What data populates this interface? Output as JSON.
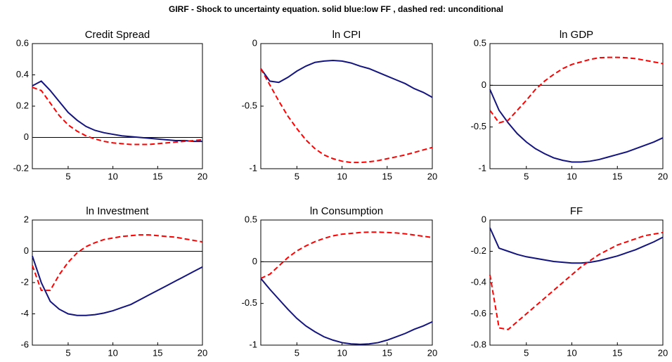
{
  "title": "GIRF - Shock to uncertainty equation. solid blue:low FF , dashed red: unconditional",
  "chart_data": [
    {
      "type": "line",
      "title": "Credit Spread",
      "x": [
        1,
        2,
        3,
        4,
        5,
        6,
        7,
        8,
        9,
        10,
        11,
        12,
        13,
        14,
        15,
        16,
        17,
        18,
        19,
        20
      ],
      "xlim": [
        1,
        20
      ],
      "xticks": [
        5,
        10,
        15,
        20
      ],
      "ylim": [
        -0.2,
        0.6
      ],
      "yticks": [
        -0.2,
        0,
        0.2,
        0.4,
        0.6
      ],
      "series": [
        {
          "color": "#14147f",
          "linestyle": "solid",
          "values": [
            0.33,
            0.36,
            0.3,
            0.23,
            0.16,
            0.11,
            0.07,
            0.045,
            0.03,
            0.02,
            0.01,
            0.005,
            0,
            -0.005,
            -0.01,
            -0.015,
            -0.02,
            -0.02,
            -0.025,
            -0.025
          ]
        },
        {
          "color": "#ff0000",
          "linestyle": "dashed",
          "values": [
            0.32,
            0.3,
            0.22,
            0.14,
            0.08,
            0.04,
            0.01,
            -0.01,
            -0.025,
            -0.035,
            -0.04,
            -0.045,
            -0.045,
            -0.045,
            -0.04,
            -0.035,
            -0.03,
            -0.025,
            -0.02,
            -0.015
          ]
        }
      ]
    },
    {
      "type": "line",
      "title": "ln CPI",
      "x": [
        1,
        2,
        3,
        4,
        5,
        6,
        7,
        8,
        9,
        10,
        11,
        12,
        13,
        14,
        15,
        16,
        17,
        18,
        19,
        20
      ],
      "xlim": [
        1,
        20
      ],
      "xticks": [
        5,
        10,
        15,
        20
      ],
      "ylim": [
        -1,
        0
      ],
      "yticks": [
        -1,
        -0.5,
        0
      ],
      "series": [
        {
          "color": "#14147f",
          "linestyle": "solid",
          "values": [
            -0.2,
            -0.3,
            -0.31,
            -0.27,
            -0.22,
            -0.18,
            -0.15,
            -0.14,
            -0.135,
            -0.14,
            -0.155,
            -0.18,
            -0.2,
            -0.23,
            -0.26,
            -0.29,
            -0.32,
            -0.36,
            -0.39,
            -0.43
          ]
        },
        {
          "color": "#ff0000",
          "linestyle": "dashed",
          "values": [
            -0.2,
            -0.33,
            -0.46,
            -0.58,
            -0.68,
            -0.77,
            -0.84,
            -0.89,
            -0.92,
            -0.94,
            -0.95,
            -0.95,
            -0.945,
            -0.935,
            -0.92,
            -0.905,
            -0.89,
            -0.87,
            -0.85,
            -0.83
          ]
        }
      ]
    },
    {
      "type": "line",
      "title": "ln GDP",
      "x": [
        1,
        2,
        3,
        4,
        5,
        6,
        7,
        8,
        9,
        10,
        11,
        12,
        13,
        14,
        15,
        16,
        17,
        18,
        19,
        20
      ],
      "xlim": [
        1,
        20
      ],
      "xticks": [
        5,
        10,
        15,
        20
      ],
      "ylim": [
        -1,
        0.5
      ],
      "yticks": [
        -1,
        -0.5,
        0,
        0.5
      ],
      "series": [
        {
          "color": "#14147f",
          "linestyle": "solid",
          "values": [
            -0.05,
            -0.3,
            -0.45,
            -0.58,
            -0.68,
            -0.76,
            -0.82,
            -0.87,
            -0.9,
            -0.92,
            -0.92,
            -0.91,
            -0.89,
            -0.86,
            -0.83,
            -0.8,
            -0.76,
            -0.72,
            -0.68,
            -0.63
          ]
        },
        {
          "color": "#ff0000",
          "linestyle": "dashed",
          "values": [
            -0.3,
            -0.45,
            -0.42,
            -0.3,
            -0.18,
            -0.05,
            0.05,
            0.13,
            0.2,
            0.25,
            0.28,
            0.31,
            0.33,
            0.335,
            0.335,
            0.33,
            0.32,
            0.3,
            0.28,
            0.26
          ]
        }
      ]
    },
    {
      "type": "line",
      "title": "ln Investment",
      "x": [
        1,
        2,
        3,
        4,
        5,
        6,
        7,
        8,
        9,
        10,
        11,
        12,
        13,
        14,
        15,
        16,
        17,
        18,
        19,
        20
      ],
      "xlim": [
        1,
        20
      ],
      "xticks": [
        5,
        10,
        15,
        20
      ],
      "ylim": [
        -6,
        2
      ],
      "yticks": [
        -6,
        -4,
        -2,
        0,
        2
      ],
      "series": [
        {
          "color": "#14147f",
          "linestyle": "solid",
          "values": [
            -0.3,
            -2,
            -3.2,
            -3.7,
            -4,
            -4.1,
            -4.1,
            -4.05,
            -3.95,
            -3.8,
            -3.6,
            -3.4,
            -3.1,
            -2.8,
            -2.5,
            -2.2,
            -1.9,
            -1.6,
            -1.3,
            -1.0
          ]
        },
        {
          "color": "#ff0000",
          "linestyle": "dashed",
          "values": [
            -0.9,
            -2.5,
            -2.5,
            -1.5,
            -0.7,
            -0.1,
            0.3,
            0.55,
            0.75,
            0.85,
            0.95,
            1.0,
            1.05,
            1.05,
            1.0,
            0.95,
            0.9,
            0.8,
            0.7,
            0.6
          ]
        }
      ]
    },
    {
      "type": "line",
      "title": "ln Consumption",
      "x": [
        1,
        2,
        3,
        4,
        5,
        6,
        7,
        8,
        9,
        10,
        11,
        12,
        13,
        14,
        15,
        16,
        17,
        18,
        19,
        20
      ],
      "xlim": [
        1,
        20
      ],
      "xticks": [
        5,
        10,
        15,
        20
      ],
      "ylim": [
        -1,
        0.5
      ],
      "yticks": [
        -1,
        -0.5,
        0,
        0.5
      ],
      "series": [
        {
          "color": "#14147f",
          "linestyle": "solid",
          "values": [
            -0.2,
            -0.33,
            -0.45,
            -0.57,
            -0.68,
            -0.77,
            -0.84,
            -0.9,
            -0.94,
            -0.97,
            -0.985,
            -0.99,
            -0.985,
            -0.97,
            -0.94,
            -0.9,
            -0.86,
            -0.81,
            -0.77,
            -0.72
          ]
        },
        {
          "color": "#ff0000",
          "linestyle": "dashed",
          "values": [
            -0.2,
            -0.15,
            -0.05,
            0.05,
            0.13,
            0.19,
            0.24,
            0.28,
            0.31,
            0.33,
            0.34,
            0.35,
            0.355,
            0.355,
            0.35,
            0.345,
            0.335,
            0.32,
            0.305,
            0.29
          ]
        }
      ]
    },
    {
      "type": "line",
      "title": "FF",
      "x": [
        1,
        2,
        3,
        4,
        5,
        6,
        7,
        8,
        9,
        10,
        11,
        12,
        13,
        14,
        15,
        16,
        17,
        18,
        19,
        20
      ],
      "xlim": [
        1,
        20
      ],
      "xticks": [
        5,
        10,
        15,
        20
      ],
      "ylim": [
        -0.8,
        0
      ],
      "yticks": [
        -0.8,
        -0.6,
        -0.4,
        -0.2,
        0
      ],
      "series": [
        {
          "color": "#14147f",
          "linestyle": "solid",
          "values": [
            -0.05,
            -0.18,
            -0.2,
            -0.22,
            -0.235,
            -0.245,
            -0.255,
            -0.265,
            -0.27,
            -0.275,
            -0.275,
            -0.27,
            -0.26,
            -0.245,
            -0.23,
            -0.21,
            -0.19,
            -0.165,
            -0.14,
            -0.11
          ]
        },
        {
          "color": "#ff0000",
          "linestyle": "dashed",
          "values": [
            -0.35,
            -0.69,
            -0.7,
            -0.65,
            -0.6,
            -0.55,
            -0.5,
            -0.45,
            -0.4,
            -0.35,
            -0.3,
            -0.26,
            -0.22,
            -0.19,
            -0.16,
            -0.14,
            -0.12,
            -0.1,
            -0.09,
            -0.08
          ]
        }
      ]
    }
  ]
}
